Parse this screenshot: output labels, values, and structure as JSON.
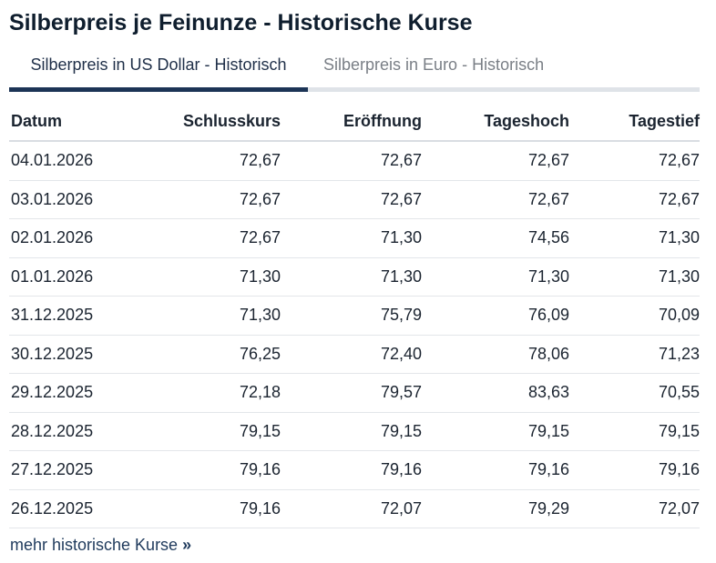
{
  "page": {
    "title": "Silberpreis je Feinunze - Historische Kurse"
  },
  "tabs": [
    {
      "label": "Silberpreis in US Dollar - Historisch",
      "active": true
    },
    {
      "label": "Silberpreis in Euro - Historisch",
      "active": false
    }
  ],
  "table": {
    "headers": [
      "Datum",
      "Schlusskurs",
      "Eröffnung",
      "Tageshoch",
      "Tagestief"
    ],
    "rows": [
      [
        "04.01.2026",
        "72,67",
        "72,67",
        "72,67",
        "72,67"
      ],
      [
        "03.01.2026",
        "72,67",
        "72,67",
        "72,67",
        "72,67"
      ],
      [
        "02.01.2026",
        "72,67",
        "71,30",
        "74,56",
        "71,30"
      ],
      [
        "01.01.2026",
        "71,30",
        "71,30",
        "71,30",
        "71,30"
      ],
      [
        "31.12.2025",
        "71,30",
        "75,79",
        "76,09",
        "70,09"
      ],
      [
        "30.12.2025",
        "76,25",
        "72,40",
        "78,06",
        "71,23"
      ],
      [
        "29.12.2025",
        "72,18",
        "79,57",
        "83,63",
        "70,55"
      ],
      [
        "28.12.2025",
        "79,15",
        "79,15",
        "79,15",
        "79,15"
      ],
      [
        "27.12.2025",
        "79,16",
        "79,16",
        "79,16",
        "79,16"
      ],
      [
        "26.12.2025",
        "79,16",
        "72,07",
        "79,29",
        "72,07"
      ]
    ]
  },
  "more_link": {
    "label": "mehr historische Kurse",
    "arrow": "»"
  },
  "colors": {
    "accent": "#1c3456",
    "tab_inactive": "#7a7f86",
    "link": "#1f3a5c"
  }
}
